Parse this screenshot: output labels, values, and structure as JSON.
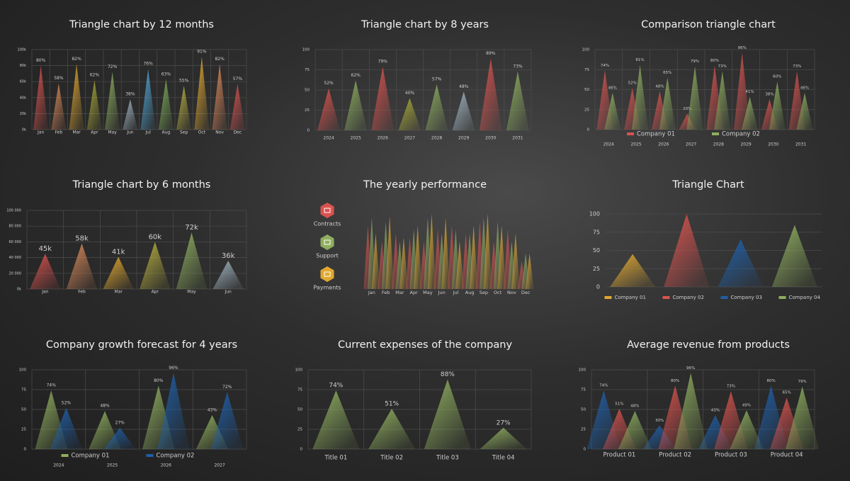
{
  "chart_data": [
    {
      "type": "triangle",
      "title": "Triangle chart by 12 months",
      "categories": [
        "Jan",
        "Feb",
        "Mar",
        "Apr",
        "May",
        "Jun",
        "Jul",
        "Aug",
        "Sep",
        "Oct",
        "Nov",
        "Dec"
      ],
      "values": [
        80,
        58,
        82,
        62,
        72,
        38,
        76,
        63,
        55,
        91,
        82,
        57
      ],
      "value_labels": [
        "80%",
        "58%",
        "82%",
        "62%",
        "72%",
        "38%",
        "76%",
        "63%",
        "55%",
        "91%",
        "82%",
        "57%"
      ],
      "colors": [
        "#d9534f",
        "#d98a5a",
        "#e0a830",
        "#a8a838",
        "#8fae5f",
        "#9fb3c0",
        "#4fa8d8",
        "#7fae5a",
        "#b8b040",
        "#e0a830",
        "#e08a5a",
        "#d9534f"
      ],
      "label_color": "#d9a040",
      "ylim": [
        0,
        100
      ],
      "yticks": [
        {
          "value": 0,
          "label": "0k"
        },
        {
          "value": 20,
          "label": "20k"
        },
        {
          "value": 40,
          "label": "40k"
        },
        {
          "value": 60,
          "label": "60k"
        },
        {
          "value": 80,
          "label": "80k"
        },
        {
          "value": 100,
          "label": "100k"
        }
      ],
      "grid": true
    },
    {
      "type": "triangle",
      "title": "Triangle chart by 8 years",
      "categories": [
        "2024",
        "2025",
        "2026",
        "2027",
        "2028",
        "2029",
        "2030",
        "2031"
      ],
      "values": [
        52,
        62,
        79,
        40,
        57,
        48,
        89,
        73
      ],
      "value_labels": [
        "52%",
        "62%",
        "79%",
        "40%",
        "57%",
        "48%",
        "89%",
        "73%"
      ],
      "colors": [
        "#d9534f",
        "#8fae5f",
        "#d9534f",
        "#a8a838",
        "#8fae5f",
        "#9fb3c0",
        "#d9534f",
        "#8fae5f"
      ],
      "label_color": "#d9a040",
      "ylim": [
        0,
        100
      ],
      "yticks": [
        0,
        25,
        50,
        75,
        100
      ],
      "grid": true
    },
    {
      "type": "triangle",
      "title": "Comparison triangle chart",
      "categories": [
        "2024",
        "2025",
        "2026",
        "2027",
        "2028",
        "2029",
        "2030",
        "2031"
      ],
      "series": [
        {
          "name": "Company 01",
          "color": "#d9534f",
          "values": [
            74,
            52,
            48,
            20,
            80,
            96,
            38,
            73
          ],
          "value_labels": [
            "74%",
            "52%",
            "48%",
            "20%",
            "80%",
            "96%",
            "38%",
            "73%"
          ]
        },
        {
          "name": "Company 02",
          "color": "#8fae5f",
          "values": [
            46,
            81,
            65,
            79,
            73,
            41,
            60,
            46
          ],
          "value_labels": [
            "46%",
            "81%",
            "65%",
            "79%",
            "73%",
            "41%",
            "60%",
            "46%"
          ]
        }
      ],
      "ylim": [
        0,
        100
      ],
      "yticks": [
        0,
        25,
        50,
        75,
        100
      ],
      "grid": true,
      "legend": "bottom"
    },
    {
      "type": "triangle",
      "title": "Triangle chart by 6 months",
      "categories": [
        "Jan",
        "Feb",
        "Mar",
        "Apr",
        "May",
        "Jun"
      ],
      "values": [
        45000,
        58000,
        41000,
        60000,
        72000,
        36000
      ],
      "value_labels": [
        "45k",
        "58k",
        "41k",
        "60k",
        "72k",
        "36k"
      ],
      "colors": [
        "#d9534f",
        "#d98a5a",
        "#e0a830",
        "#b8b040",
        "#8fae5f",
        "#9fb3c0"
      ],
      "label_color": "#ffffff",
      "ylim": [
        0,
        100000
      ],
      "yticks": [
        {
          "value": 0,
          "label": "0k"
        },
        {
          "value": 20000,
          "label": "20 000"
        },
        {
          "value": 40000,
          "label": "40 000"
        },
        {
          "value": 60000,
          "label": "60 000"
        },
        {
          "value": 80000,
          "label": "80 000"
        },
        {
          "value": 100000,
          "label": "100 000"
        }
      ],
      "grid": true
    },
    {
      "type": "triangle",
      "title": "The yearly performance",
      "categories": [
        "Jan",
        "Feb",
        "Mar",
        "Apr",
        "May",
        "Jun",
        "Jul",
        "Aug",
        "Sep",
        "Oct",
        "Nov",
        "Dec"
      ],
      "series": [
        {
          "name": "Contracts",
          "color": "#d9534f",
          "values": [
            80,
            60,
            70,
            65,
            60,
            75,
            80,
            70,
            85,
            60,
            75,
            35
          ]
        },
        {
          "name": "Support",
          "color": "#8fae5f",
          "values": [
            90,
            85,
            60,
            75,
            90,
            70,
            75,
            70,
            90,
            85,
            60,
            45
          ]
        },
        {
          "name": "Payments",
          "color": "#e0a830",
          "values": [
            70,
            92,
            65,
            80,
            95,
            90,
            60,
            80,
            95,
            80,
            70,
            45
          ]
        }
      ],
      "ylim": [
        0,
        100
      ],
      "legend": "left"
    },
    {
      "type": "triangle",
      "title": "Triangle Chart",
      "series": [
        {
          "name": "Company 01",
          "color": "#e0a830",
          "values": [
            45
          ]
        },
        {
          "name": "Company 02",
          "color": "#d9534f",
          "values": [
            100
          ]
        },
        {
          "name": "Company 03",
          "color": "#1f5fa8",
          "values": [
            65
          ]
        },
        {
          "name": "Company 04",
          "color": "#8fae5f",
          "values": [
            85
          ]
        }
      ],
      "ylim": [
        0,
        100
      ],
      "yticks": [
        0,
        25,
        50,
        75,
        100
      ],
      "grid": true,
      "legend": "bottom"
    },
    {
      "type": "triangle",
      "title": "Company growth forecast for 4 years",
      "categories": [
        "2024",
        "2025",
        "2026",
        "2027"
      ],
      "series": [
        {
          "name": "Company 01",
          "color": "#8fae5f",
          "values": [
            74,
            48,
            80,
            43
          ],
          "value_labels": [
            "74%",
            "48%",
            "80%",
            "43%"
          ]
        },
        {
          "name": "Company 02",
          "color": "#1f5fa8",
          "values": [
            52,
            27,
            96,
            72
          ],
          "value_labels": [
            "52%",
            "27%",
            "96%",
            "72%"
          ]
        }
      ],
      "ylim": [
        0,
        100
      ],
      "yticks": [
        0,
        25,
        50,
        75,
        100
      ],
      "grid": true,
      "legend": "bottom"
    },
    {
      "type": "triangle",
      "title": "Current expenses of the company",
      "categories": [
        "Title 01",
        "Title 02",
        "Title 03",
        "Title 04"
      ],
      "values": [
        74,
        51,
        88,
        27
      ],
      "value_labels": [
        "74%",
        "51%",
        "88%",
        "27%"
      ],
      "colors": [
        "#8fae5f",
        "#8fae5f",
        "#8fae5f",
        "#8fae5f"
      ],
      "label_color": "#d9a040",
      "ylim": [
        0,
        100
      ],
      "yticks": [
        0,
        25,
        50,
        75,
        100
      ],
      "grid": true
    },
    {
      "type": "triangle",
      "title": "Average revenue from products",
      "categories": [
        "Product 01",
        "Product 02",
        "Product 03",
        "Product 04"
      ],
      "series": [
        {
          "color": "#1f5fa8",
          "values": [
            74,
            30,
            43,
            80
          ],
          "value_labels": [
            "74%",
            "30%",
            "43%",
            "80%"
          ]
        },
        {
          "color": "#d9534f",
          "values": [
            51,
            80,
            73,
            65
          ],
          "value_labels": [
            "51%",
            "80%",
            "73%",
            "65%"
          ]
        },
        {
          "color": "#8fae5f",
          "values": [
            48,
            96,
            49,
            79
          ],
          "value_labels": [
            "48%",
            "96%",
            "49%",
            "79%"
          ]
        }
      ],
      "ylim": [
        0,
        100
      ],
      "yticks": [
        0,
        25,
        50,
        75,
        100
      ],
      "grid": true
    }
  ]
}
